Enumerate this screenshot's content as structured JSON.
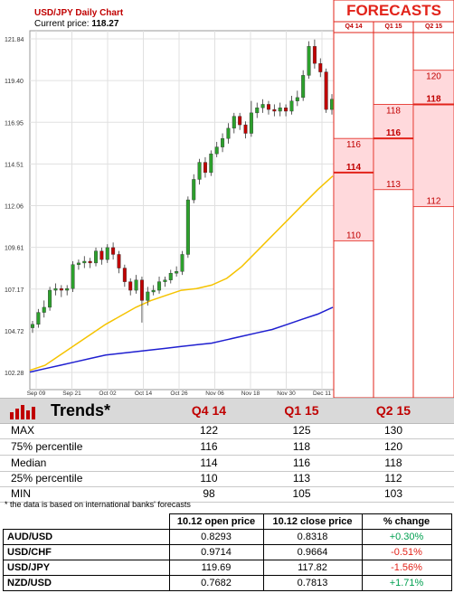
{
  "chart_title": "USD/JPY Daily Chart",
  "current_price_label": "Current price:",
  "current_price_value": "118.27",
  "chart_data": [
    {
      "type": "candlestick",
      "title": "USD/JPY Daily Chart",
      "y_ticks": [
        "121.84",
        "119.40",
        "116.95",
        "114.51",
        "112.06",
        "109.61",
        "107.17",
        "104.72",
        "102.28"
      ],
      "ylim": [
        102.28,
        121.84
      ],
      "x_ticks": [
        "Sep 09",
        "Sep 21",
        "Oct 02",
        "Oct 14",
        "Oct 26",
        "Nov 06",
        "Nov 18",
        "Nov 30",
        "Dec 11"
      ],
      "candles": [
        {
          "o": 104.9,
          "c": 105.1,
          "h": 105.3,
          "l": 104.6
        },
        {
          "o": 105.1,
          "c": 105.8,
          "h": 106.0,
          "l": 104.9
        },
        {
          "o": 105.8,
          "c": 106.1,
          "h": 106.5,
          "l": 105.5
        },
        {
          "o": 106.1,
          "c": 107.1,
          "h": 107.3,
          "l": 105.9
        },
        {
          "o": 107.1,
          "c": 107.2,
          "h": 107.5,
          "l": 106.8
        },
        {
          "o": 107.2,
          "c": 107.1,
          "h": 107.4,
          "l": 106.7
        },
        {
          "o": 107.1,
          "c": 107.2,
          "h": 107.4,
          "l": 106.8
        },
        {
          "o": 107.2,
          "c": 108.6,
          "h": 108.8,
          "l": 107.0
        },
        {
          "o": 108.6,
          "c": 108.7,
          "h": 108.9,
          "l": 108.3
        },
        {
          "o": 108.7,
          "c": 108.8,
          "h": 109.1,
          "l": 108.4
        },
        {
          "o": 108.8,
          "c": 108.7,
          "h": 109.0,
          "l": 108.4
        },
        {
          "o": 108.7,
          "c": 109.4,
          "h": 109.6,
          "l": 108.5
        },
        {
          "o": 109.4,
          "c": 108.9,
          "h": 109.6,
          "l": 108.6
        },
        {
          "o": 108.9,
          "c": 109.6,
          "h": 109.8,
          "l": 108.7
        },
        {
          "o": 109.6,
          "c": 109.2,
          "h": 109.9,
          "l": 108.9
        },
        {
          "o": 109.2,
          "c": 108.4,
          "h": 109.4,
          "l": 108.1
        },
        {
          "o": 108.4,
          "c": 107.6,
          "h": 108.6,
          "l": 107.3
        },
        {
          "o": 107.6,
          "c": 107.1,
          "h": 107.8,
          "l": 106.8
        },
        {
          "o": 107.1,
          "c": 107.7,
          "h": 108.0,
          "l": 106.9
        },
        {
          "o": 107.7,
          "c": 106.5,
          "h": 107.9,
          "l": 105.2
        },
        {
          "o": 106.5,
          "c": 107.0,
          "h": 107.3,
          "l": 106.2
        },
        {
          "o": 107.0,
          "c": 107.1,
          "h": 107.4,
          "l": 106.8
        },
        {
          "o": 107.1,
          "c": 107.6,
          "h": 107.9,
          "l": 106.9
        },
        {
          "o": 107.6,
          "c": 107.7,
          "h": 107.9,
          "l": 107.3
        },
        {
          "o": 107.7,
          "c": 108.1,
          "h": 108.3,
          "l": 107.5
        },
        {
          "o": 108.1,
          "c": 108.2,
          "h": 108.5,
          "l": 107.9
        },
        {
          "o": 108.2,
          "c": 109.2,
          "h": 109.4,
          "l": 108.0
        },
        {
          "o": 109.2,
          "c": 112.4,
          "h": 112.6,
          "l": 109.0
        },
        {
          "o": 112.4,
          "c": 113.6,
          "h": 113.9,
          "l": 112.2
        },
        {
          "o": 113.6,
          "c": 114.6,
          "h": 114.8,
          "l": 113.3
        },
        {
          "o": 114.6,
          "c": 114.0,
          "h": 114.9,
          "l": 113.7
        },
        {
          "o": 114.0,
          "c": 115.1,
          "h": 115.3,
          "l": 113.8
        },
        {
          "o": 115.1,
          "c": 115.5,
          "h": 115.8,
          "l": 114.9
        },
        {
          "o": 115.5,
          "c": 116.0,
          "h": 116.3,
          "l": 115.2
        },
        {
          "o": 116.0,
          "c": 116.6,
          "h": 116.9,
          "l": 115.7
        },
        {
          "o": 116.6,
          "c": 117.3,
          "h": 117.5,
          "l": 116.3
        },
        {
          "o": 117.3,
          "c": 116.8,
          "h": 117.5,
          "l": 116.5
        },
        {
          "o": 116.8,
          "c": 116.3,
          "h": 117.0,
          "l": 116.0
        },
        {
          "o": 116.3,
          "c": 117.5,
          "h": 118.2,
          "l": 116.1
        },
        {
          "o": 117.5,
          "c": 117.8,
          "h": 118.1,
          "l": 117.2
        },
        {
          "o": 117.8,
          "c": 118.0,
          "h": 118.3,
          "l": 117.5
        },
        {
          "o": 118.0,
          "c": 117.7,
          "h": 118.2,
          "l": 117.4
        },
        {
          "o": 117.7,
          "c": 117.6,
          "h": 118.0,
          "l": 117.3
        },
        {
          "o": 117.6,
          "c": 117.8,
          "h": 118.1,
          "l": 117.3
        },
        {
          "o": 117.8,
          "c": 117.6,
          "h": 118.0,
          "l": 117.3
        },
        {
          "o": 117.6,
          "c": 118.2,
          "h": 118.5,
          "l": 117.4
        },
        {
          "o": 118.2,
          "c": 118.4,
          "h": 118.8,
          "l": 117.9
        },
        {
          "o": 118.4,
          "c": 119.7,
          "h": 120.0,
          "l": 118.2
        },
        {
          "o": 119.7,
          "c": 121.4,
          "h": 121.7,
          "l": 119.5
        },
        {
          "o": 121.4,
          "c": 120.4,
          "h": 121.8,
          "l": 120.1
        },
        {
          "o": 120.4,
          "c": 119.9,
          "h": 120.7,
          "l": 119.6
        },
        {
          "o": 119.9,
          "c": 117.7,
          "h": 120.1,
          "l": 117.5
        },
        {
          "o": 117.7,
          "c": 118.3,
          "h": 118.6,
          "l": 117.4
        }
      ],
      "series": [
        {
          "type": "line",
          "color": "#f5c300",
          "values": [
            102.4,
            102.7,
            103.3,
            103.9,
            104.5,
            105.1,
            105.6,
            106.1,
            106.5,
            106.8,
            107.1,
            107.2,
            107.4,
            107.8,
            108.5,
            109.4,
            110.3,
            111.2,
            112.1,
            113.0,
            113.8
          ]
        },
        {
          "type": "line",
          "color": "#1f1fd0",
          "values": [
            102.3,
            102.5,
            102.7,
            102.9,
            103.1,
            103.3,
            103.4,
            103.5,
            103.6,
            103.7,
            103.8,
            103.9,
            104.0,
            104.2,
            104.4,
            104.6,
            104.8,
            105.1,
            105.4,
            105.7,
            106.1
          ]
        }
      ]
    },
    {
      "type": "forecast_ranges",
      "title": "FORECASTS",
      "columns": [
        {
          "label": "Q4 14",
          "max": null,
          "p75": 116,
          "median": 114,
          "p25": 110
        },
        {
          "label": "Q1 15",
          "max": null,
          "p75": 118,
          "median": 116,
          "p25": 113
        },
        {
          "label": "Q2 15",
          "max": null,
          "p75": 120,
          "median": 118,
          "p25": 112
        }
      ]
    },
    {
      "type": "table",
      "title": "Trends*",
      "columns": [
        "Q4 14",
        "Q1 15",
        "Q2 15"
      ],
      "rows": [
        {
          "label": "MAX",
          "values": [
            "122",
            "125",
            "130"
          ]
        },
        {
          "label": "75% percentile",
          "values": [
            "116",
            "118",
            "120"
          ]
        },
        {
          "label": "Median",
          "values": [
            "114",
            "116",
            "118"
          ]
        },
        {
          "label": "25% percentile",
          "values": [
            "110",
            "113",
            "112"
          ]
        },
        {
          "label": "MIN",
          "values": [
            "98",
            "105",
            "103"
          ]
        }
      ],
      "note": "* the data is based on international banks' forecasts"
    },
    {
      "type": "table",
      "columns": [
        "",
        "10.12 open price",
        "10.12 close price",
        "% change"
      ],
      "rows": [
        {
          "pair": "AUD/USD",
          "open": "0.8293",
          "close": "0.8318",
          "change": "+0.30%",
          "dir": "pos"
        },
        {
          "pair": "USD/CHF",
          "open": "0.9714",
          "close": "0.9664",
          "change": "-0.51%",
          "dir": "neg"
        },
        {
          "pair": "USD/JPY",
          "open": "119.69",
          "close": "117.82",
          "change": "-1.56%",
          "dir": "neg"
        },
        {
          "pair": "NZD/USD",
          "open": "0.7682",
          "close": "0.7813",
          "change": "+1.71%",
          "dir": "pos"
        }
      ]
    }
  ],
  "colors": {
    "up": "#2ca02c",
    "down": "#c00000",
    "forecast_fill": "#ffd9dc",
    "forecast_line": "#e2231a",
    "accent": "#c00000"
  }
}
